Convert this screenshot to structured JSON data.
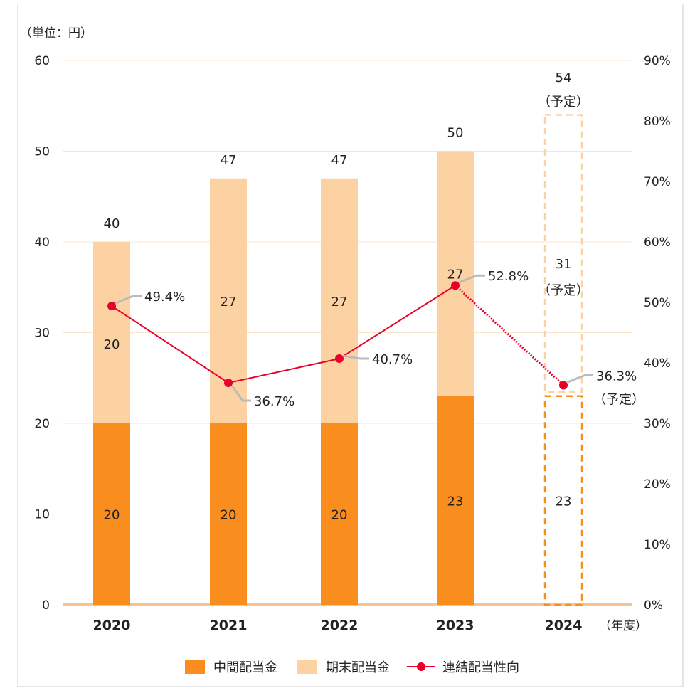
{
  "chart_data": {
    "type": "bar",
    "stacked": true,
    "unit_label": "（単位：円）",
    "x_unit_label": "（年度）",
    "categories": [
      "2020",
      "2021",
      "2022",
      "2023",
      "2024"
    ],
    "left_axis": {
      "range": [
        0,
        60
      ],
      "ticks": [
        0,
        10,
        20,
        30,
        40,
        50,
        60
      ]
    },
    "right_axis": {
      "range": [
        0,
        90
      ],
      "ticks": [
        "0%",
        "10%",
        "20%",
        "30%",
        "40%",
        "50%",
        "60%",
        "70%",
        "80%",
        "90%"
      ]
    },
    "series": [
      {
        "name": "中間配当金",
        "color": "#F98D1E",
        "values": [
          20,
          20,
          20,
          23,
          23
        ],
        "labels": [
          "20",
          "20",
          "20",
          "23",
          "23"
        ]
      },
      {
        "name": "期末配当金",
        "color": "#FDD2A3",
        "values": [
          20,
          27,
          27,
          27,
          31
        ],
        "labels": [
          "20",
          "27",
          "27",
          "27",
          "31"
        ],
        "label_notes": [
          "",
          "",
          "",
          "",
          "（予定）"
        ]
      }
    ],
    "totals": [
      "40",
      "47",
      "47",
      "50",
      "54"
    ],
    "total_notes": [
      "",
      "",
      "",
      "",
      "（予定）"
    ],
    "forecast_index": 4,
    "payout_ratio": {
      "name": "連結配当性向",
      "color": "#E8002A",
      "values": [
        49.4,
        36.7,
        40.7,
        52.8,
        36.3
      ],
      "labels": [
        "49.4%",
        "36.7%",
        "40.7%",
        "52.8%",
        "36.3%"
      ],
      "notes": [
        "",
        "",
        "",
        "",
        "（予定）"
      ]
    },
    "legend": {
      "position": "bottom"
    },
    "grid": true
  }
}
